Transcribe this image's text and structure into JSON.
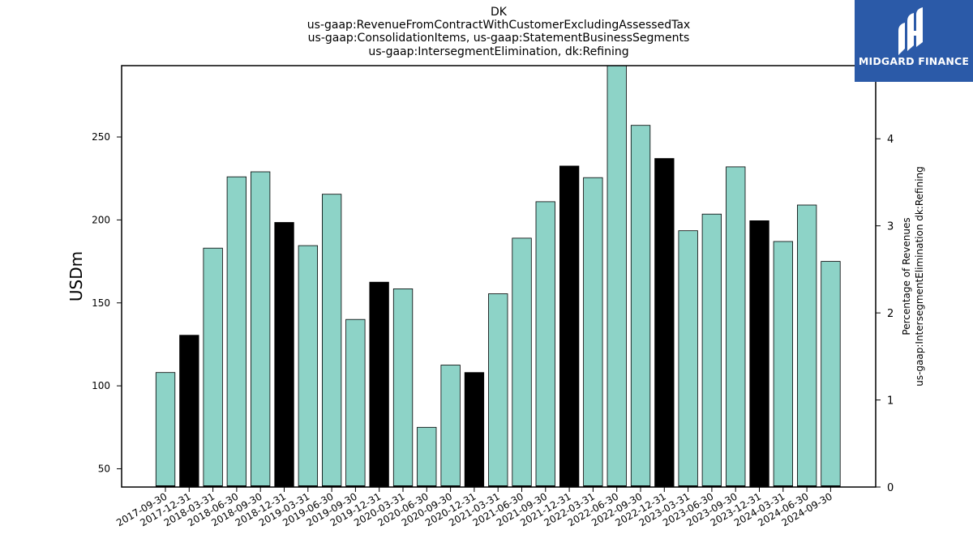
{
  "chart_data": {
    "type": "bar",
    "title_lines": [
      "DK",
      "us-gaap:RevenueFromContractWithCustomerExcludingAssessedTax",
      "us-gaap:ConsolidationItems, us-gaap:StatementBusinessSegments",
      "us-gaap:IntersegmentElimination, dk:Refining"
    ],
    "ylabel": "USDm",
    "y2label_lines": [
      "Percentage of Revenues",
      "us-gaap:IntersegmentElimination dk:Refining"
    ],
    "ylim": [
      39,
      293
    ],
    "y_ticks": [
      50,
      100,
      150,
      200,
      250
    ],
    "y2lim": [
      0,
      4.84
    ],
    "y2_ticks": [
      0,
      1,
      2,
      3,
      4
    ],
    "categories": [
      "2017-09-30",
      "2017-12-31",
      "2018-03-31",
      "2018-06-30",
      "2018-09-30",
      "2018-12-31",
      "2019-03-31",
      "2019-06-30",
      "2019-09-30",
      "2019-12-31",
      "2020-03-31",
      "2020-06-30",
      "2020-09-30",
      "2020-12-31",
      "2021-03-31",
      "2021-06-30",
      "2021-09-30",
      "2021-12-31",
      "2022-03-31",
      "2022-06-30",
      "2022-09-30",
      "2022-12-31",
      "2023-03-31",
      "2023-06-30",
      "2023-09-30",
      "2023-12-31",
      "2024-03-31",
      "2024-06-30",
      "2024-09-30"
    ],
    "values": [
      108,
      130.5,
      183,
      226,
      229,
      198.5,
      184.5,
      215.5,
      140,
      162.5,
      158.5,
      75,
      112.5,
      108,
      155.5,
      189,
      211,
      232.5,
      225.5,
      293,
      257,
      237,
      193.5,
      203.5,
      232,
      199.5,
      187,
      209,
      175
    ],
    "quarter_end": [
      false,
      true,
      false,
      false,
      false,
      true,
      false,
      false,
      false,
      true,
      false,
      false,
      false,
      true,
      false,
      false,
      false,
      true,
      false,
      false,
      false,
      true,
      false,
      false,
      false,
      true,
      false,
      false,
      false
    ],
    "colors": {
      "bar": "#8dd3c7",
      "q4_bar": "#000000",
      "edge": "#000000"
    },
    "grid": false,
    "legend": "none"
  },
  "logo": {
    "text": "MIDGARD FINANCE",
    "background": "#2b5aa8"
  }
}
